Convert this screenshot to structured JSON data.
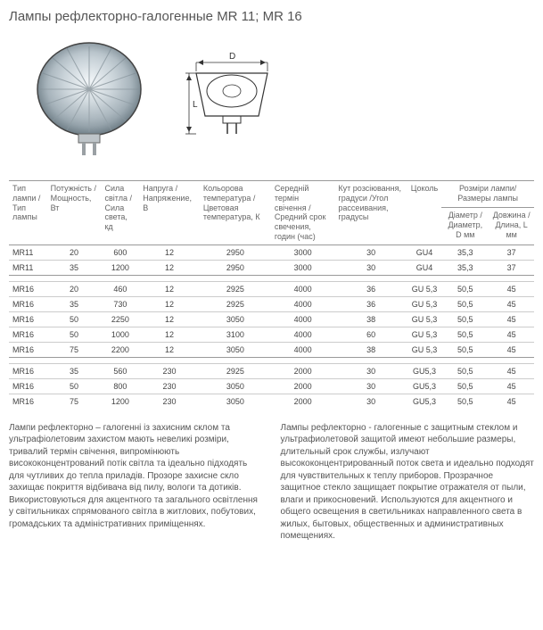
{
  "title": "Лампы рефлекторно-галогенные MR 11; MR 16",
  "headers": {
    "type": "Тип лампи /Тип лампы",
    "power": "Потужність /Мощность, Вт",
    "lum": "Сила світла /Сила света, кд",
    "volt": "Напруга /Напряжение, В",
    "temp": "Кольорова температура /Цветовая температура, К",
    "life": "Середній термін свічення /Средний срок свечения, годин (час)",
    "angle": "Кут розсіювання, градуси /Угол рассеивания, градусы",
    "base": "Цоколь",
    "dims": "Розміри лампи/Размеры лампы",
    "diam": "Діаметр /Диаметр, D мм",
    "len": "Довжина /Длина, L мм"
  },
  "groups": [
    [
      {
        "type": "MR11",
        "power": "20",
        "lum": "600",
        "volt": "12",
        "temp": "2950",
        "life": "3000",
        "angle": "30",
        "base": "GU4",
        "diam": "35,3",
        "len": "37"
      },
      {
        "type": "MR11",
        "power": "35",
        "lum": "1200",
        "volt": "12",
        "temp": "2950",
        "life": "3000",
        "angle": "30",
        "base": "GU4",
        "diam": "35,3",
        "len": "37"
      }
    ],
    [
      {
        "type": "MR16",
        "power": "20",
        "lum": "460",
        "volt": "12",
        "temp": "2925",
        "life": "4000",
        "angle": "36",
        "base": "GU 5,3",
        "diam": "50,5",
        "len": "45"
      },
      {
        "type": "MR16",
        "power": "35",
        "lum": "730",
        "volt": "12",
        "temp": "2925",
        "life": "4000",
        "angle": "36",
        "base": "GU 5,3",
        "diam": "50,5",
        "len": "45"
      },
      {
        "type": "MR16",
        "power": "50",
        "lum": "2250",
        "volt": "12",
        "temp": "3050",
        "life": "4000",
        "angle": "38",
        "base": "GU 5,3",
        "diam": "50,5",
        "len": "45"
      },
      {
        "type": "MR16",
        "power": "50",
        "lum": "1000",
        "volt": "12",
        "temp": "3100",
        "life": "4000",
        "angle": "60",
        "base": "GU 5,3",
        "diam": "50,5",
        "len": "45"
      },
      {
        "type": "MR16",
        "power": "75",
        "lum": "2200",
        "volt": "12",
        "temp": "3050",
        "life": "4000",
        "angle": "38",
        "base": "GU 5,3",
        "diam": "50,5",
        "len": "45"
      }
    ],
    [
      {
        "type": "MR16",
        "power": "35",
        "lum": "560",
        "volt": "230",
        "temp": "2925",
        "life": "2000",
        "angle": "30",
        "base": "GU5,3",
        "diam": "50,5",
        "len": "45"
      },
      {
        "type": "MR16",
        "power": "50",
        "lum": "800",
        "volt": "230",
        "temp": "3050",
        "life": "2000",
        "angle": "30",
        "base": "GU5,3",
        "diam": "50,5",
        "len": "45"
      },
      {
        "type": "MR16",
        "power": "75",
        "lum": "1200",
        "volt": "230",
        "temp": "3050",
        "life": "2000",
        "angle": "30",
        "base": "GU5,3",
        "diam": "50,5",
        "len": "45"
      }
    ]
  ],
  "paragraphs": {
    "left": "Лампи рефлекторно – галогенні із захисним склом та ультрафіолетовим захистом мають невеликі розміри, тривалий термін свічення, випромінюють висококонцентрований потік світла та ідеально підходять для чутливих до тепла приладів. Прозоре захисне скло захищає покриття відбивача від пилу, вологи та дотиків. Використовуються для акцентного та загального освітлення у світильниках спрямованого світла в житлових, побутових, громадських та адміністративних приміщеннях.",
    "right": "Лампы рефлекторно - галогенные с защитным стеклом и ультрафиолетовой защитой имеют небольшие размеры, длительный срок службы, излучают высококонцентрированный поток света и идеально подходят для чувствительных к теплу приборов. Прозрачное защитное стекло защищает покрытие отражателя от пыли, влаги и прикосновений. Используются для акцентного и общего освещения в светильниках направленного света в жилых, бытовых, общественных и административных помещениях."
  },
  "diagram_labels": {
    "d": "D",
    "l": "L"
  }
}
